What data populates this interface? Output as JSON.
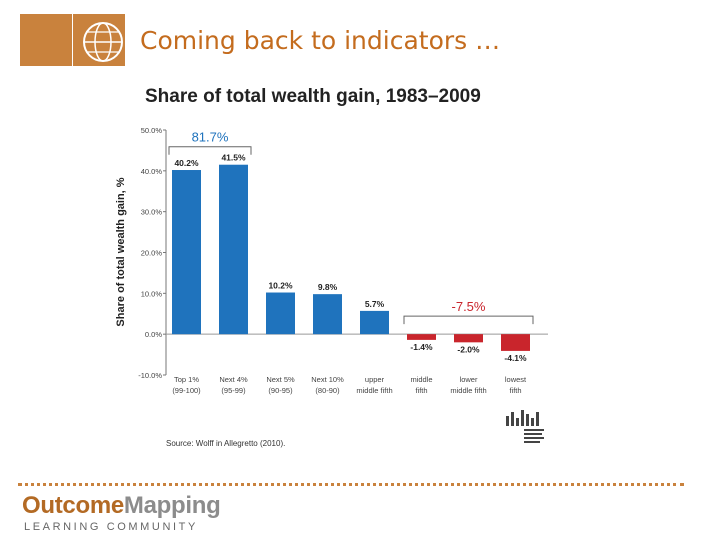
{
  "slide": {
    "title": "Coming back to indicators …",
    "brand_part1": "Outcome",
    "brand_part2": "Mapping",
    "subtitle": "LEARNING   COMMUNITY",
    "accent_color": "#c9823d"
  },
  "chart_data": {
    "type": "bar",
    "title": "Share of total wealth gain, 1983–2009",
    "ylabel": "Share of total wealth gain, %",
    "xlabel": "",
    "ylim": [
      -10,
      50
    ],
    "yticks": [
      -10,
      0,
      10,
      20,
      30,
      40,
      50
    ],
    "ytick_labels": [
      "-10.0%",
      "0.0%",
      "10.0%",
      "20.0%",
      "30.0%",
      "40.0%",
      "50.0%"
    ],
    "categories": [
      [
        "Top 1%",
        "(99-100)"
      ],
      [
        "Next 4%",
        "(95-99)"
      ],
      [
        "Next 5%",
        "(90-95)"
      ],
      [
        "Next 10%",
        "(80-90)"
      ],
      [
        "upper",
        "middle fifth"
      ],
      [
        "middle",
        "fifth"
      ],
      [
        "lower",
        "middle fifth"
      ],
      [
        "lowest",
        "fifth"
      ]
    ],
    "values": [
      40.2,
      41.5,
      10.2,
      9.8,
      5.7,
      -1.4,
      -2.0,
      -4.1
    ],
    "value_labels": [
      "40.2%",
      "41.5%",
      "10.2%",
      "9.8%",
      "5.7%",
      "-1.4%",
      "-2.0%",
      "-4.1%"
    ],
    "colors": {
      "positive": "#1f73bd",
      "negative": "#c9252c",
      "bracket_positive_label": "#1f73bd",
      "bracket_negative_label": "#c9252c"
    },
    "annotations": [
      {
        "label": "81.7%",
        "span": [
          0,
          1
        ],
        "side": "top"
      },
      {
        "label": "-7.5%",
        "span": [
          5,
          7
        ],
        "side": "top"
      }
    ],
    "source": "Source: Wolff in Allegretto (2010)."
  }
}
